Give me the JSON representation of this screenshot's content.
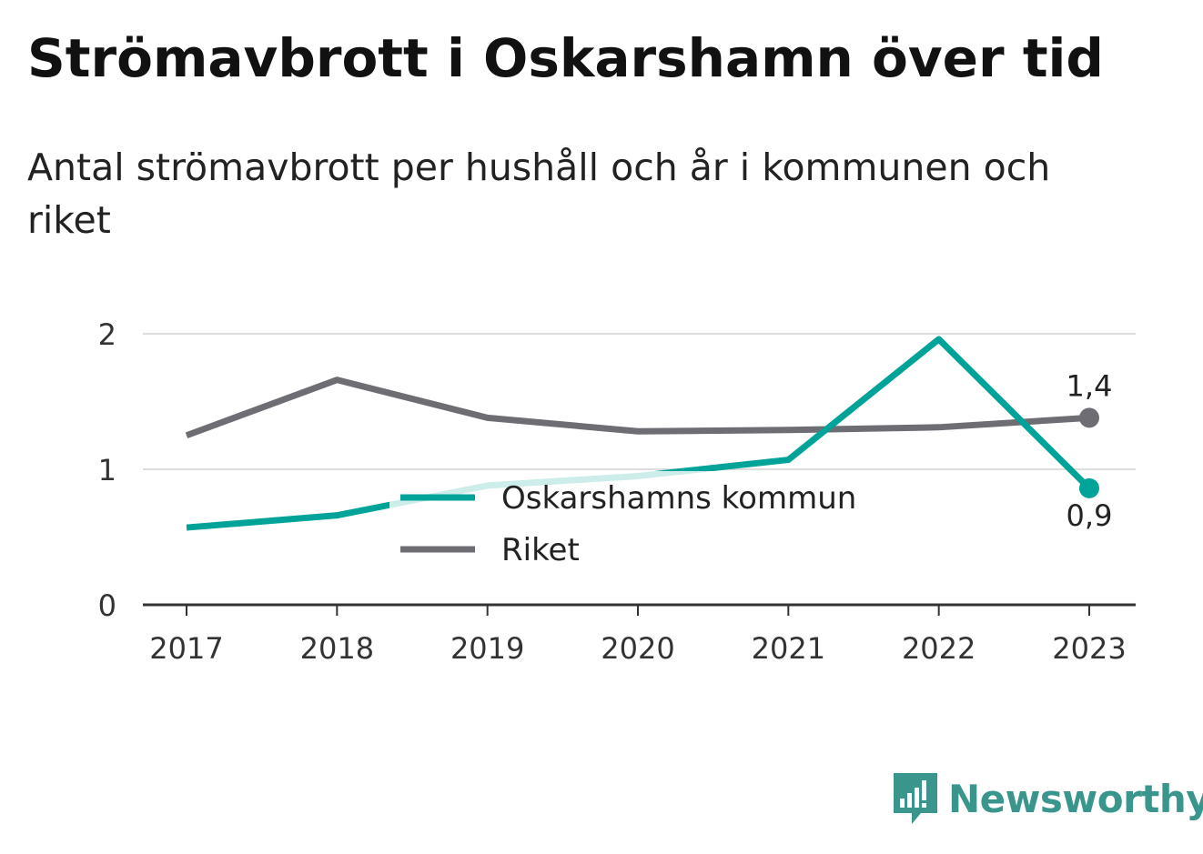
{
  "chart_data": {
    "type": "line",
    "title": "Strömavbrott i Oskarshamn över tid",
    "subtitle": "Antal strömavbrott per hushåll och år i kommunen och riket",
    "x": [
      "2017",
      "2018",
      "2019",
      "2020",
      "2021",
      "2022",
      "2023"
    ],
    "yticks": [
      "0",
      "1",
      "2"
    ],
    "ylim": [
      0,
      2
    ],
    "grid": true,
    "legend_position": "center",
    "series": [
      {
        "name": "Oskarshamns kommun",
        "color": "#00a398",
        "values": [
          0.57,
          0.66,
          0.88,
          0.95,
          1.07,
          1.96,
          0.86
        ],
        "end_label": "0,9"
      },
      {
        "name": "Riket",
        "color": "#6e6d74",
        "values": [
          1.25,
          1.66,
          1.38,
          1.28,
          1.29,
          1.31,
          1.38
        ],
        "end_label": "1,4"
      }
    ]
  },
  "brand": {
    "name": "Newsworthy",
    "icon": "bar-chart-speech-bubble-icon",
    "color": "#3a968c"
  }
}
